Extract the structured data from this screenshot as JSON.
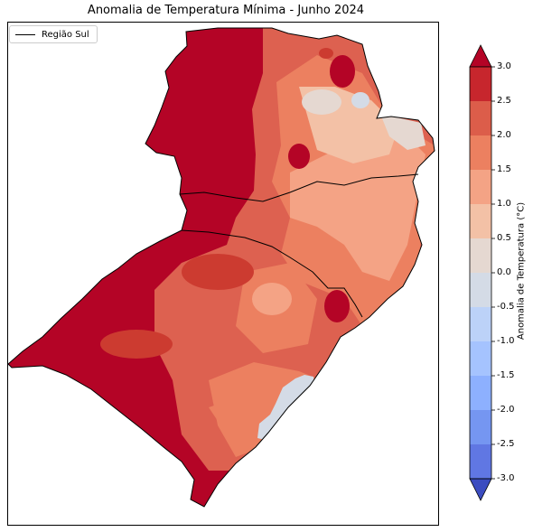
{
  "map": {
    "title": "Anomalia de Temperatura Mínima - Junho 2024",
    "legend_label": "Região Sul",
    "legend_line_color": "#000000",
    "region_colors": {
      "very_high": "#b40426",
      "high": "#cc3b30",
      "mid_high": "#dd6150",
      "mid": "#ec8060",
      "mid_low": "#f4a385",
      "low": "#f3c1a6",
      "near_zero": "#e5d8d1",
      "slightly_negative": "#d4dbe6"
    }
  },
  "colorbar": {
    "label": "Anomalia de Temperatura (°C)",
    "ticks": [
      "3.0",
      "2.5",
      "2.0",
      "1.5",
      "1.0",
      "0.5",
      "0.0",
      "-0.5",
      "-1.0",
      "-1.5",
      "-2.0",
      "-2.5",
      "-3.0"
    ],
    "bins": [
      "#c7262d",
      "#dc5d4a",
      "#ec8060",
      "#f4a385",
      "#f3c1a6",
      "#e5d8d1",
      "#d4dbe6",
      "#bcd2f8",
      "#a5c3fe",
      "#8db0fe",
      "#7596f1",
      "#6077e3"
    ],
    "over_color": "#b40426",
    "under_color": "#3b4cc0"
  }
}
